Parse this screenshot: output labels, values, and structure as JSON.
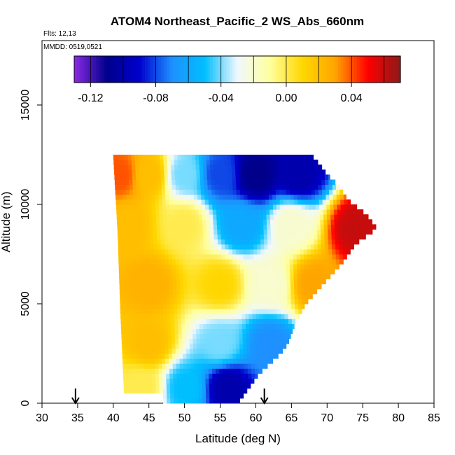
{
  "chart_data": {
    "type": "heatmap",
    "title": "ATOM4 Northeast_Pacific_2 WS_Abs_660nm",
    "flights_note": "Flts: 12,13",
    "dates_note": "MMDD: 0519,0521",
    "xlabel": "Latitude (deg N)",
    "ylabel": "Altitude (m)",
    "xlim": [
      30,
      85
    ],
    "ylim": [
      0,
      17500
    ],
    "xticks": [
      30,
      35,
      40,
      45,
      50,
      55,
      60,
      65,
      70,
      75,
      80,
      85
    ],
    "xtick_labels": [
      "30",
      "35",
      "40",
      "45",
      "50",
      "55",
      "60",
      "65",
      "70",
      "75",
      "80",
      "85"
    ],
    "yticks": [
      0,
      5000,
      10000,
      15000
    ],
    "ytick_labels": [
      "0",
      "5000",
      "10000",
      "15000"
    ],
    "grid": false,
    "colorbar": {
      "range": [
        -0.13,
        0.07
      ],
      "ticks": [
        -0.12,
        -0.08,
        -0.04,
        0.0,
        0.04
      ],
      "tick_labels": [
        "-0.12",
        "-0.08",
        "-0.04",
        "0.00",
        "0.04"
      ],
      "colors": [
        "#8a2be2",
        "#00008b",
        "#0000cd",
        "#1e90ff",
        "#00bfff",
        "#f0f8ff",
        "#ffff9e",
        "#ffd700",
        "#ffa500",
        "#ff0000",
        "#8b1a1a"
      ]
    },
    "flight_arrows_lat": [
      34.7,
      61.2
    ],
    "extent": {
      "lat_south": 40,
      "bottom_boundary": [
        {
          "alt": 12400,
          "lat": 40
        },
        {
          "alt": 8600,
          "lat": 40.6
        },
        {
          "alt": 4500,
          "lat": 41.0
        },
        {
          "alt": 500,
          "lat": 41.5
        }
      ],
      "north_boundary": [
        {
          "alt": 0,
          "lat": 57.5
        },
        {
          "alt": 500,
          "lat": 58.5
        },
        {
          "alt": 1000,
          "lat": 59.5
        },
        {
          "alt": 1500,
          "lat": 60.5
        },
        {
          "alt": 2000,
          "lat": 62.0
        },
        {
          "alt": 2500,
          "lat": 63.5
        },
        {
          "alt": 3000,
          "lat": 64.5
        },
        {
          "alt": 4000,
          "lat": 65.5
        },
        {
          "alt": 5000,
          "lat": 67.0
        },
        {
          "alt": 6000,
          "lat": 69.5
        },
        {
          "alt": 7000,
          "lat": 72.0
        },
        {
          "alt": 8000,
          "lat": 74.0
        },
        {
          "alt": 8800,
          "lat": 77.0
        },
        {
          "alt": 9500,
          "lat": 75.5
        },
        {
          "alt": 10200,
          "lat": 73.0
        },
        {
          "alt": 11000,
          "lat": 71.5
        },
        {
          "alt": 11500,
          "lat": 70.0
        },
        {
          "alt": 12000,
          "lat": 69.0
        },
        {
          "alt": 12400,
          "lat": 68.0
        }
      ]
    },
    "field_samples": [
      {
        "lat": 41,
        "alt": 11500,
        "value": 0.04
      },
      {
        "lat": 45,
        "alt": 11500,
        "value": 0.02
      },
      {
        "lat": 50,
        "alt": 11500,
        "value": -0.04
      },
      {
        "lat": 55,
        "alt": 11500,
        "value": -0.08
      },
      {
        "lat": 60,
        "alt": 11500,
        "value": -0.11
      },
      {
        "lat": 66,
        "alt": 11500,
        "value": -0.1
      },
      {
        "lat": 42,
        "alt": 9000,
        "value": 0.02
      },
      {
        "lat": 50,
        "alt": 9000,
        "value": 0.0
      },
      {
        "lat": 58,
        "alt": 9000,
        "value": -0.06
      },
      {
        "lat": 65,
        "alt": 9000,
        "value": -0.02
      },
      {
        "lat": 74,
        "alt": 8800,
        "value": 0.06
      },
      {
        "lat": 45,
        "alt": 6000,
        "value": 0.025
      },
      {
        "lat": 55,
        "alt": 6000,
        "value": 0.01
      },
      {
        "lat": 62,
        "alt": 6000,
        "value": -0.02
      },
      {
        "lat": 68,
        "alt": 6000,
        "value": 0.03
      },
      {
        "lat": 45,
        "alt": 3000,
        "value": 0.02
      },
      {
        "lat": 55,
        "alt": 3000,
        "value": -0.04
      },
      {
        "lat": 62,
        "alt": 3000,
        "value": -0.07
      },
      {
        "lat": 44,
        "alt": 800,
        "value": 0.0
      },
      {
        "lat": 50,
        "alt": 800,
        "value": -0.05
      },
      {
        "lat": 56,
        "alt": 800,
        "value": -0.1
      }
    ]
  }
}
